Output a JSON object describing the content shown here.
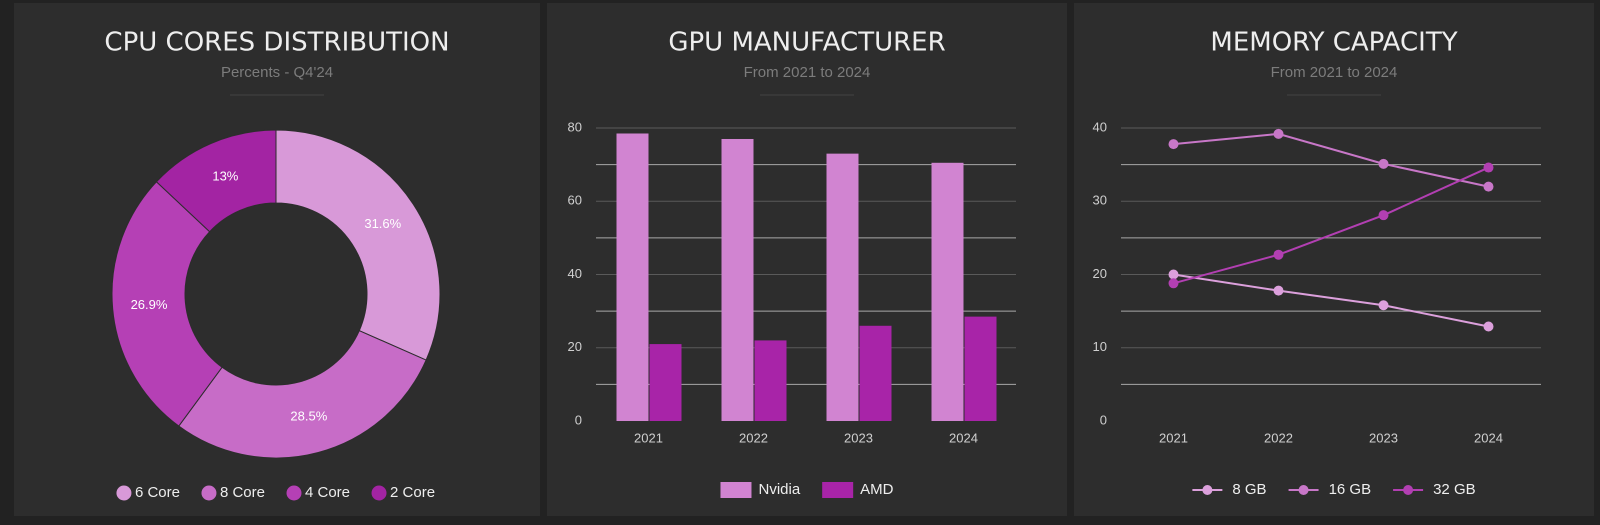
{
  "chart_data": [
    {
      "type": "pie",
      "donut": true,
      "title": "CPU CORES DISTRIBUTION",
      "subtitle": "Percents - Q4'24",
      "categories": [
        "6 Core",
        "8 Core",
        "4 Core",
        "2 Core"
      ],
      "values": [
        31.6,
        28.5,
        26.9,
        13
      ],
      "value_labels": [
        "31.6%",
        "28.5%",
        "26.9%",
        "13%"
      ],
      "colors": [
        "#d899d8",
        "#c76cc7",
        "#b540b5",
        "#a324a3"
      ]
    },
    {
      "type": "bar",
      "title": "GPU MANUFACTURER",
      "subtitle": "From 2021 to 2024",
      "categories": [
        "2021",
        "2022",
        "2023",
        "2024"
      ],
      "series": [
        {
          "name": "Nvidia",
          "color": "#d184d1",
          "values": [
            78.5,
            77,
            73,
            70.5
          ]
        },
        {
          "name": "AMD",
          "color": "#a824a8",
          "values": [
            21,
            22,
            26,
            28.5
          ]
        }
      ],
      "ylim": [
        0,
        80
      ],
      "yticks": [
        0,
        20,
        40,
        60,
        80
      ],
      "minor_yticks": [
        10,
        30,
        50,
        70
      ],
      "grid": true
    },
    {
      "type": "line",
      "title": "MEMORY CAPACITY",
      "subtitle": "From 2021 to 2024",
      "categories": [
        "2021",
        "2022",
        "2023",
        "2024"
      ],
      "series": [
        {
          "name": "8 GB",
          "color": "#dca0dc",
          "values": [
            20,
            17.8,
            15.8,
            12.9
          ]
        },
        {
          "name": "16 GB",
          "color": "#c877c8",
          "values": [
            37.8,
            39.2,
            35.1,
            32
          ]
        },
        {
          "name": "32 GB",
          "color": "#b23fb2",
          "values": [
            18.8,
            22.7,
            28.1,
            34.6
          ]
        }
      ],
      "ylim": [
        0,
        40
      ],
      "yticks": [
        0,
        10,
        20,
        30,
        40
      ],
      "minor_yticks": [
        5,
        15,
        25,
        35
      ],
      "grid": true
    }
  ]
}
